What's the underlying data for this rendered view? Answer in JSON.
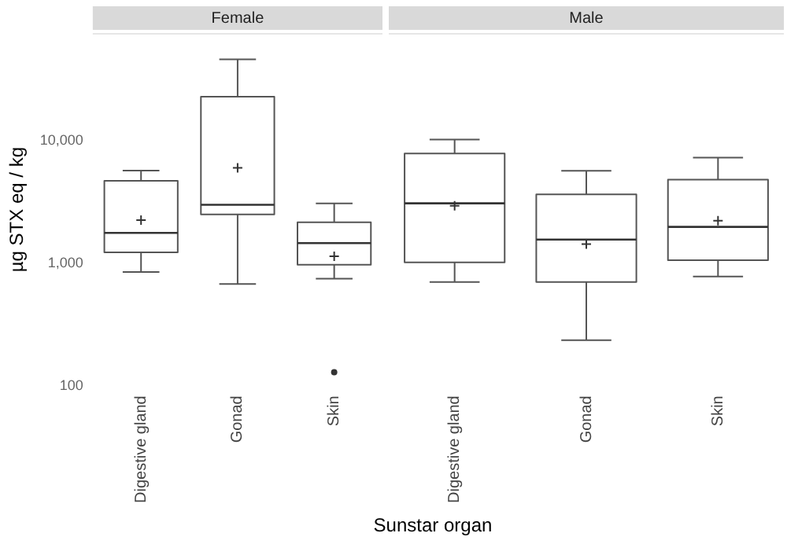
{
  "chart_data": [
    {
      "type": "box",
      "title": "Female",
      "ylabel": "µg STX eq / kg",
      "xlabel": "Sunstar organ",
      "categories": [
        "Digestive gland",
        "Gonad",
        "Skin"
      ],
      "log": true,
      "grid": false,
      "ylim": [
        100,
        75000
      ],
      "yticks": [
        {
          "value": 100,
          "label": "100"
        },
        {
          "value": 1000,
          "label": "1,000"
        },
        {
          "value": 10000,
          "label": "10,000"
        }
      ],
      "boxes": [
        {
          "low": 850,
          "q1": 1230,
          "median": 1770,
          "q3": 4700,
          "high": 5700,
          "mean": 2250
        },
        {
          "low": 680,
          "q1": 2500,
          "median": 3000,
          "q3": 22700,
          "high": 45800,
          "mean": 6000
        },
        {
          "low": 750,
          "q1": 975,
          "median": 1460,
          "q3": 2160,
          "high": 3080,
          "mean": 1140,
          "outliers": [
            130
          ]
        }
      ]
    },
    {
      "type": "box",
      "title": "Male",
      "categories": [
        "Digestive gland",
        "Gonad",
        "Skin"
      ],
      "log": true,
      "grid": false,
      "tick_labels": "x",
      "ylim": [
        100,
        75000
      ],
      "boxes": [
        {
          "low": 705,
          "q1": 1020,
          "median": 3080,
          "q3": 7850,
          "high": 10200,
          "mean": 2940
        },
        {
          "low": 237,
          "q1": 705,
          "median": 1560,
          "q3": 3650,
          "high": 5670,
          "mean": 1435
        },
        {
          "low": 780,
          "q1": 1060,
          "median": 1980,
          "q3": 4810,
          "high": 7260,
          "mean": 2220
        }
      ]
    }
  ]
}
